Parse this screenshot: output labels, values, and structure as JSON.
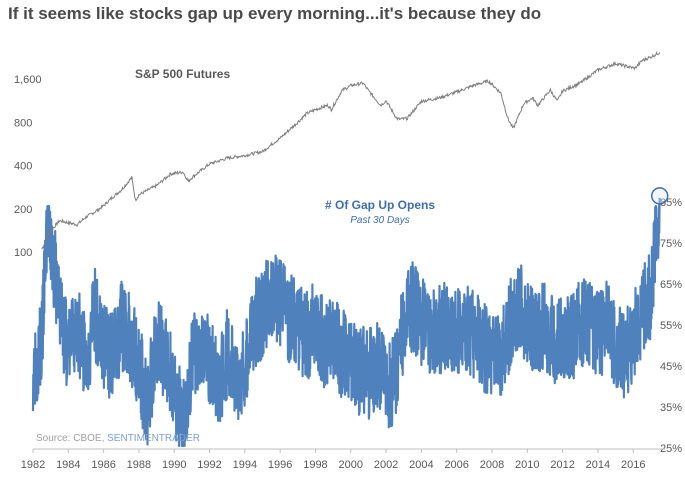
{
  "title": "If it seems like stocks gap up every morning...it's because they do",
  "chart_data": {
    "type": "line",
    "x_axis": {
      "ticks": [
        "1982",
        "1984",
        "1986",
        "1988",
        "1990",
        "1992",
        "1994",
        "1996",
        "1998",
        "2000",
        "2002",
        "2004",
        "2006",
        "2008",
        "2010",
        "2012",
        "2014",
        "2016"
      ],
      "range": [
        1982.0,
        2017.8
      ]
    },
    "left_axis": {
      "scale": "log",
      "ticks": [
        100,
        200,
        400,
        800,
        1600
      ],
      "tick_labels": [
        "100",
        "200",
        "400",
        "800",
        "1,600"
      ]
    },
    "right_axis": {
      "ticks": [
        25,
        35,
        45,
        55,
        65,
        75,
        85
      ],
      "tick_labels": [
        "25%",
        "35%",
        "45%",
        "55%",
        "65%",
        "75%",
        "85%"
      ]
    },
    "series": [
      {
        "name": "S&P 500 Futures",
        "axis": "left",
        "color": "#7f7f7f",
        "points": [
          [
            1982.5,
            105
          ],
          [
            1983.0,
            140
          ],
          [
            1983.5,
            165
          ],
          [
            1984.0,
            160
          ],
          [
            1984.5,
            155
          ],
          [
            1985.0,
            175
          ],
          [
            1985.5,
            190
          ],
          [
            1986.0,
            210
          ],
          [
            1986.5,
            240
          ],
          [
            1987.0,
            270
          ],
          [
            1987.6,
            330
          ],
          [
            1987.8,
            230
          ],
          [
            1988.0,
            250
          ],
          [
            1989.0,
            290
          ],
          [
            1989.8,
            350
          ],
          [
            1990.5,
            360
          ],
          [
            1990.8,
            310
          ],
          [
            1991.0,
            330
          ],
          [
            1992.0,
            410
          ],
          [
            1993.0,
            450
          ],
          [
            1994.0,
            470
          ],
          [
            1995.0,
            500
          ],
          [
            1995.5,
            560
          ],
          [
            1996.0,
            620
          ],
          [
            1997.0,
            800
          ],
          [
            1997.5,
            920
          ],
          [
            1998.0,
            980
          ],
          [
            1998.7,
            1050
          ],
          [
            1998.9,
            980
          ],
          [
            1999.5,
            1330
          ],
          [
            2000.0,
            1440
          ],
          [
            2000.7,
            1500
          ],
          [
            2001.0,
            1330
          ],
          [
            2001.7,
            1050
          ],
          [
            2002.0,
            1130
          ],
          [
            2002.6,
            850
          ],
          [
            2002.8,
            840
          ],
          [
            2003.2,
            850
          ],
          [
            2004.0,
            1120
          ],
          [
            2005.0,
            1180
          ],
          [
            2006.0,
            1300
          ],
          [
            2007.0,
            1450
          ],
          [
            2007.8,
            1550
          ],
          [
            2008.5,
            1280
          ],
          [
            2008.9,
            850
          ],
          [
            2009.2,
            720
          ],
          [
            2009.8,
            1080
          ],
          [
            2010.3,
            1180
          ],
          [
            2010.6,
            1050
          ],
          [
            2011.3,
            1340
          ],
          [
            2011.7,
            1120
          ],
          [
            2012.0,
            1320
          ],
          [
            2013.0,
            1500
          ],
          [
            2014.0,
            1850
          ],
          [
            2015.0,
            2050
          ],
          [
            2015.7,
            1950
          ],
          [
            2016.1,
            1900
          ],
          [
            2016.5,
            2150
          ],
          [
            2017.0,
            2280
          ],
          [
            2017.5,
            2450
          ]
        ]
      },
      {
        "name": "# Of Gap Up Opens",
        "subtitle": "Past 30 Days",
        "axis": "right",
        "unit": "%",
        "color": "#4f81bd",
        "points": [
          [
            1982.0,
            45
          ],
          [
            1982.5,
            50
          ],
          [
            1982.8,
            80
          ],
          [
            1983.5,
            60
          ],
          [
            1984.0,
            48
          ],
          [
            1984.5,
            55
          ],
          [
            1985.0,
            46
          ],
          [
            1985.5,
            58
          ],
          [
            1986.0,
            50
          ],
          [
            1986.5,
            47
          ],
          [
            1987.0,
            55
          ],
          [
            1987.5,
            52
          ],
          [
            1988.0,
            45
          ],
          [
            1988.5,
            35
          ],
          [
            1989.0,
            52
          ],
          [
            1989.5,
            46
          ],
          [
            1990.0,
            40
          ],
          [
            1990.5,
            30
          ],
          [
            1991.0,
            45
          ],
          [
            1991.5,
            52
          ],
          [
            1992.0,
            47
          ],
          [
            1992.5,
            40
          ],
          [
            1993.0,
            48
          ],
          [
            1993.5,
            42
          ],
          [
            1994.0,
            45
          ],
          [
            1994.5,
            55
          ],
          [
            1995.0,
            58
          ],
          [
            1995.5,
            62
          ],
          [
            1996.0,
            60
          ],
          [
            1996.5,
            57
          ],
          [
            1997.0,
            55
          ],
          [
            1997.5,
            52
          ],
          [
            1998.0,
            55
          ],
          [
            1998.5,
            50
          ],
          [
            1999.0,
            52
          ],
          [
            1999.5,
            48
          ],
          [
            2000.0,
            46
          ],
          [
            2000.5,
            44
          ],
          [
            2001.0,
            43
          ],
          [
            2001.5,
            45
          ],
          [
            2002.0,
            40
          ],
          [
            2002.5,
            42
          ],
          [
            2003.0,
            55
          ],
          [
            2003.5,
            60
          ],
          [
            2004.0,
            56
          ],
          [
            2004.5,
            52
          ],
          [
            2005.0,
            54
          ],
          [
            2005.5,
            55
          ],
          [
            2006.0,
            53
          ],
          [
            2006.5,
            54
          ],
          [
            2007.0,
            52
          ],
          [
            2007.5,
            50
          ],
          [
            2008.0,
            48
          ],
          [
            2008.5,
            46
          ],
          [
            2009.0,
            55
          ],
          [
            2009.5,
            60
          ],
          [
            2010.0,
            56
          ],
          [
            2010.5,
            53
          ],
          [
            2011.0,
            55
          ],
          [
            2011.5,
            50
          ],
          [
            2012.0,
            53
          ],
          [
            2012.5,
            52
          ],
          [
            2013.0,
            55
          ],
          [
            2013.5,
            56
          ],
          [
            2014.0,
            52
          ],
          [
            2014.5,
            55
          ],
          [
            2015.0,
            50
          ],
          [
            2015.5,
            47
          ],
          [
            2016.0,
            52
          ],
          [
            2016.5,
            58
          ],
          [
            2017.0,
            62
          ],
          [
            2017.5,
            86
          ]
        ],
        "highlight": {
          "x": 2017.5,
          "y": 86
        }
      }
    ],
    "source_prefix": "Source: CBOE, ",
    "source_link": "SENTIMENTRADER",
    "grid": false
  }
}
